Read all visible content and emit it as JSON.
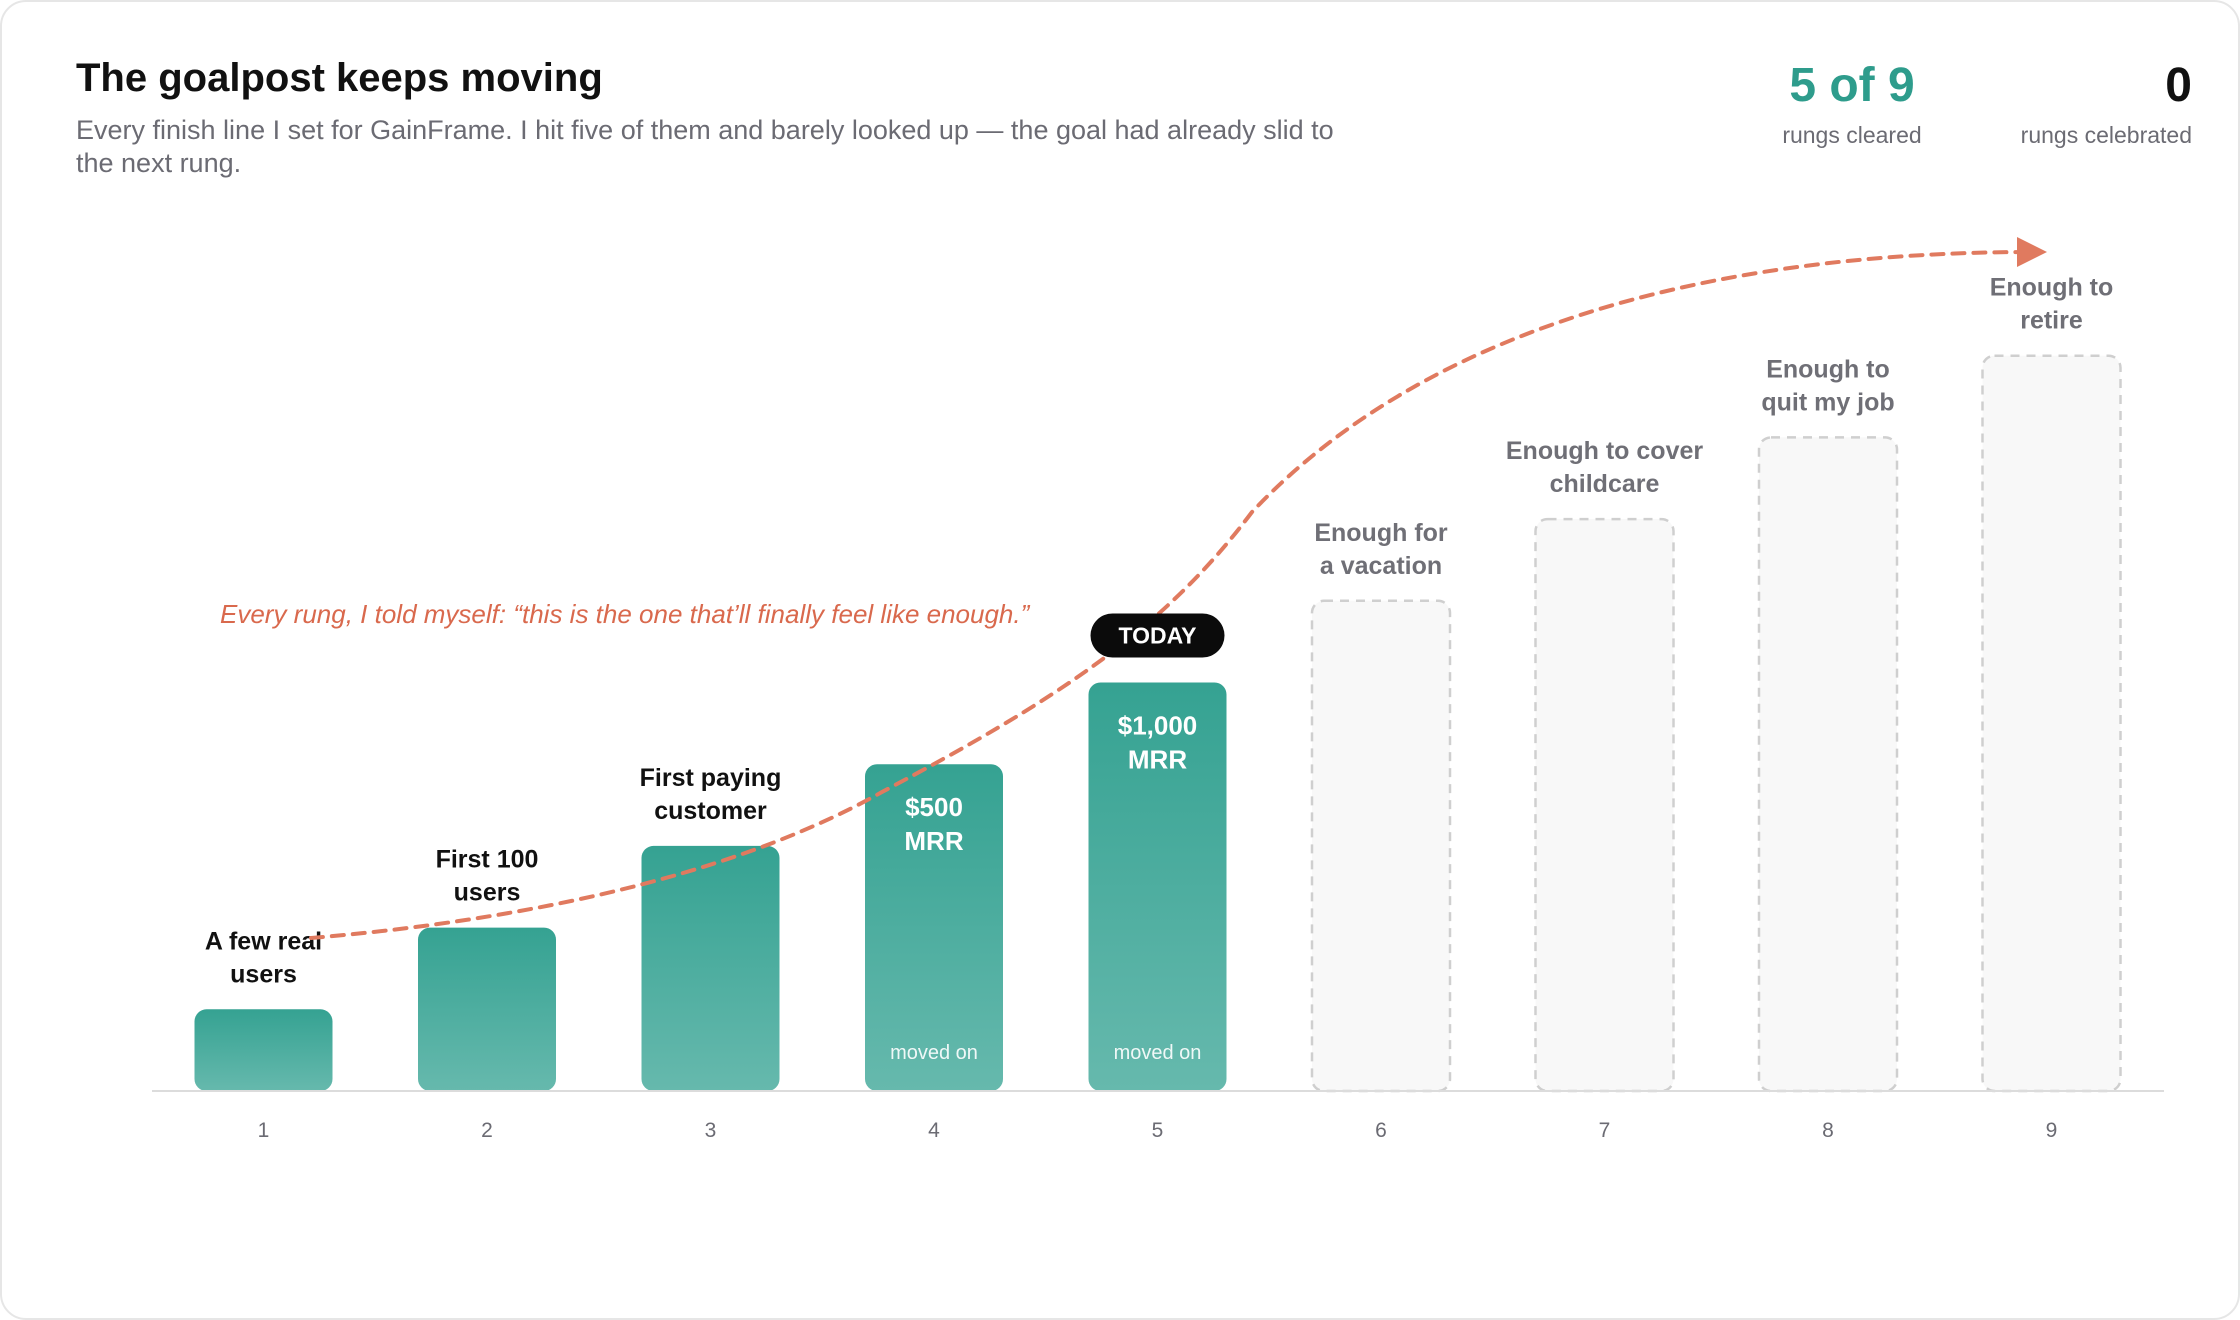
{
  "header": {
    "title": "The goalpost keeps moving",
    "subtitle": "Every finish line I set for GainFrame. I hit five of them and barely looked up — the goal had already slid to the next rung."
  },
  "stats": [
    {
      "value": "5 of 9",
      "label": "rungs cleared"
    },
    {
      "value": "0",
      "label": "rungs celebrated"
    }
  ],
  "colors": {
    "bar_top": "#35a292",
    "bar_bottom": "#66b9ad",
    "future_fill": "#f8f8f8",
    "future_stroke": "#cfcfcf",
    "curve": "#e07a5f",
    "accent": "#2e9c8c"
  },
  "chart_data": {
    "type": "bar",
    "categories": [
      "1",
      "2",
      "3",
      "4",
      "5",
      "6",
      "7",
      "8",
      "9"
    ],
    "values": [
      1,
      2,
      3,
      4,
      5,
      6,
      7,
      8,
      9
    ],
    "ylim": [
      0,
      9
    ],
    "grid": false,
    "labels": [
      [
        "A few real",
        "users"
      ],
      [
        "First 100",
        "users"
      ],
      [
        "First paying",
        "customer"
      ],
      [
        "$500",
        "MRR"
      ],
      [
        "$1,000",
        "MRR"
      ],
      [
        "Enough for",
        "a vacation"
      ],
      [
        "Enough to cover",
        "childcare"
      ],
      [
        "Enough to",
        "quit my job"
      ],
      [
        "Enough to",
        "retire"
      ]
    ],
    "status": [
      "cleared",
      "cleared",
      "cleared",
      "cleared",
      "cleared",
      "future",
      "future",
      "future",
      "future"
    ],
    "label_inside": [
      false,
      false,
      false,
      true,
      true,
      false,
      false,
      false,
      false
    ],
    "bar_notes": [
      "",
      "",
      "",
      "moved on",
      "moved on",
      "",
      "",
      "",
      ""
    ],
    "today_index": 4,
    "today_label": "TODAY",
    "annotation": "Every rung, I told myself: “this is the one that’ll finally feel like enough.”"
  }
}
